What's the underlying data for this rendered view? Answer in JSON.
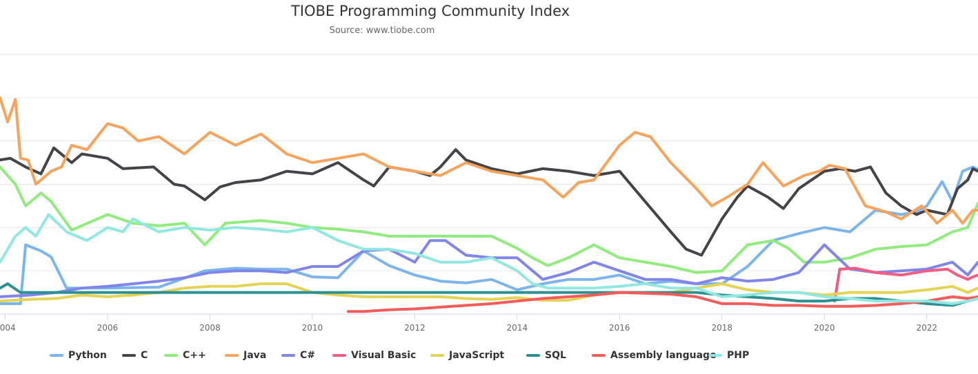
{
  "chart_data": {
    "type": "line",
    "title": "TIOBE Programming Community Index",
    "subtitle": "Source: www.tiobe.com",
    "xlim": [
      2003.9,
      2023.0
    ],
    "ylim": [
      0,
      30
    ],
    "grid": true,
    "legend_position": "bottom",
    "x_ticks": [
      2004,
      2006,
      2008,
      2010,
      2012,
      2014,
      2016,
      2018,
      2020,
      2022
    ],
    "x_tick_labels": [
      "2004",
      "2006",
      "2008",
      "2010",
      "2012",
      "2014",
      "2016",
      "2018",
      "2020",
      "2022"
    ],
    "series": [
      {
        "name": "Python",
        "color": "#7cb5ec",
        "x": [
          2003.9,
          2004.3,
          2004.4,
          2004.7,
          2004.9,
          2005.2,
          2006,
          2007,
          2007.9,
          2008.5,
          2009,
          2009.5,
          2010,
          2010.5,
          2011,
          2011.5,
          2012,
          2012.5,
          2013,
          2013.5,
          2014,
          2014.5,
          2015,
          2015.5,
          2016,
          2016.5,
          2017,
          2017.5,
          2018,
          2018.5,
          2019,
          2019.5,
          2020,
          2020.5,
          2021,
          2021.5,
          2021.8,
          2022,
          2022.3,
          2022.5,
          2022.7,
          2022.9,
          2023.0
        ],
        "y": [
          1.2,
          1.2,
          8.0,
          7.3,
          6.6,
          3.0,
          3.0,
          3.1,
          5.0,
          5.3,
          5.2,
          5.2,
          4.3,
          4.2,
          7.3,
          5.6,
          4.5,
          3.8,
          3.6,
          4.0,
          2.8,
          3.5,
          4.0,
          4.0,
          4.5,
          3.5,
          3.8,
          3.5,
          3.5,
          5.5,
          8.5,
          9.3,
          10.0,
          9.5,
          12.0,
          11.5,
          11.8,
          12.5,
          15.3,
          13.0,
          16.5,
          17.0,
          16.7
        ]
      },
      {
        "name": "C",
        "color": "#434348",
        "x": [
          2003.9,
          2004.1,
          2004.4,
          2004.7,
          2004.95,
          2005.3,
          2005.5,
          2006,
          2006.3,
          2006.9,
          2007.3,
          2007.5,
          2007.9,
          2008.2,
          2008.5,
          2009,
          2009.5,
          2010,
          2010.5,
          2011,
          2011.2,
          2011.5,
          2012,
          2012.3,
          2012.5,
          2012.8,
          2013,
          2013.5,
          2014,
          2014.5,
          2015,
          2015.5,
          2016,
          2016.5,
          2017,
          2017.3,
          2017.6,
          2018,
          2018.3,
          2018.5,
          2018.9,
          2019.2,
          2019.5,
          2020,
          2020.3,
          2020.6,
          2020.9,
          2021.2,
          2021.5,
          2021.8,
          2022,
          2022.4,
          2022.6,
          2022.8,
          2022.9,
          2023.0
        ],
        "y": [
          17.8,
          18.0,
          17.0,
          16.2,
          19.2,
          17.5,
          18.5,
          18.0,
          16.8,
          17.0,
          15.0,
          14.8,
          13.2,
          14.7,
          15.2,
          15.5,
          16.5,
          16.2,
          17.5,
          15.5,
          14.8,
          17.0,
          16.5,
          16.0,
          17.0,
          19.0,
          17.8,
          16.8,
          16.2,
          16.8,
          16.5,
          16.0,
          16.5,
          13.0,
          9.5,
          7.5,
          6.8,
          11.0,
          13.5,
          14.8,
          13.5,
          12.2,
          14.5,
          16.5,
          16.8,
          16.5,
          17.0,
          14.0,
          12.5,
          11.5,
          12.0,
          11.5,
          14.5,
          15.5,
          16.8,
          16.5
        ]
      },
      {
        "name": "C++",
        "color": "#90ed7d",
        "x": [
          2003.9,
          2004.2,
          2004.4,
          2004.7,
          2004.9,
          2005.3,
          2006,
          2006.5,
          2007,
          2007.5,
          2007.9,
          2008.3,
          2009,
          2009.5,
          2010,
          2010.5,
          2011,
          2011.5,
          2012,
          2012.5,
          2013,
          2013.5,
          2014,
          2014.3,
          2014.6,
          2015,
          2015.5,
          2016,
          2016.5,
          2017,
          2017.5,
          2018,
          2018.5,
          2019,
          2019.3,
          2019.6,
          2020,
          2020.5,
          2021,
          2021.5,
          2022,
          2022.5,
          2022.8,
          2023.0
        ],
        "y": [
          17.0,
          15.0,
          12.5,
          14.0,
          13.0,
          9.7,
          11.5,
          10.5,
          10.2,
          10.5,
          8.0,
          10.5,
          10.8,
          10.5,
          10.0,
          9.8,
          9.5,
          9.0,
          9.0,
          9.0,
          9.0,
          9.0,
          7.6,
          6.5,
          5.6,
          6.5,
          8.0,
          6.5,
          6.0,
          5.5,
          4.8,
          5.0,
          8.0,
          8.5,
          7.6,
          6.0,
          6.0,
          6.5,
          7.5,
          7.8,
          8.0,
          9.5,
          10.0,
          12.8
        ]
      },
      {
        "name": "Java",
        "color": "#f7a35c",
        "x": [
          2003.9,
          2004.05,
          2004.2,
          2004.3,
          2004.45,
          2004.6,
          2004.9,
          2005.1,
          2005.3,
          2005.6,
          2006,
          2006.3,
          2006.6,
          2007,
          2007.5,
          2008,
          2008.5,
          2009,
          2009.5,
          2010,
          2010.5,
          2011,
          2011.5,
          2012,
          2012.5,
          2013,
          2013.5,
          2014,
          2014.5,
          2014.9,
          2015.2,
          2015.5,
          2016,
          2016.3,
          2016.6,
          2017,
          2017.5,
          2017.8,
          2018.1,
          2018.5,
          2018.8,
          2019.2,
          2019.6,
          2019.9,
          2020.1,
          2020.4,
          2020.8,
          2021.2,
          2021.5,
          2021.9,
          2022.2,
          2022.5,
          2022.7,
          2022.9,
          2023.0
        ],
        "y": [
          25.0,
          22.2,
          24.8,
          18.0,
          17.8,
          15.0,
          16.5,
          17.0,
          19.5,
          19.0,
          22.0,
          21.5,
          20.0,
          20.5,
          18.5,
          21.0,
          19.5,
          20.8,
          18.5,
          17.5,
          18.0,
          18.5,
          17.0,
          16.5,
          16.0,
          17.5,
          16.5,
          16.0,
          15.5,
          13.5,
          15.2,
          15.5,
          19.5,
          21.0,
          20.5,
          17.5,
          14.5,
          12.5,
          13.5,
          15.0,
          17.5,
          14.8,
          16.0,
          16.5,
          17.2,
          16.8,
          12.5,
          11.8,
          11.0,
          12.5,
          10.5,
          12.0,
          10.5,
          12.0,
          12.0
        ]
      },
      {
        "name": "C#",
        "color": "#8085e9",
        "x": [
          2003.9,
          2004.5,
          2005,
          2005.5,
          2006,
          2006.5,
          2007,
          2007.5,
          2008,
          2008.5,
          2009,
          2009.5,
          2010,
          2010.5,
          2011,
          2011.5,
          2012,
          2012.3,
          2012.6,
          2013,
          2013.5,
          2014,
          2014.5,
          2015,
          2015.5,
          2016,
          2016.5,
          2017,
          2017.5,
          2018,
          2018.5,
          2019,
          2019.5,
          2020,
          2020.5,
          2021,
          2021.5,
          2022,
          2022.5,
          2022.8,
          2023.0
        ],
        "y": [
          2.0,
          2.2,
          2.5,
          3.0,
          3.2,
          3.5,
          3.8,
          4.2,
          4.8,
          5.0,
          5.0,
          4.8,
          5.5,
          5.5,
          7.3,
          7.5,
          6.0,
          8.5,
          8.5,
          6.8,
          6.5,
          6.5,
          4.0,
          4.8,
          6.0,
          5.0,
          4.0,
          4.0,
          3.5,
          4.2,
          3.8,
          4.0,
          4.8,
          8.0,
          5.2,
          4.8,
          5.0,
          5.2,
          6.0,
          4.5,
          6.0
        ]
      },
      {
        "name": "Visual Basic",
        "color": "#f15c80",
        "x": [
          2020.2,
          2020.3,
          2020.6,
          2021,
          2021.5,
          2022,
          2022.4,
          2022.6,
          2022.8,
          2022.9,
          2023.0
        ],
        "y": [
          1.5,
          5.2,
          5.3,
          4.8,
          4.5,
          5.0,
          5.2,
          4.5,
          4.0,
          4.3,
          4.5
        ]
      },
      {
        "name": "JavaScript",
        "color": "#e4d354",
        "x": [
          2003.9,
          2004.5,
          2005,
          2005.5,
          2006,
          2006.5,
          2007,
          2007.5,
          2008,
          2008.5,
          2009,
          2009.5,
          2010,
          2010.5,
          2011,
          2011.5,
          2012,
          2012.5,
          2013,
          2013.5,
          2014,
          2014.5,
          2015,
          2015.5,
          2016,
          2016.5,
          2017,
          2017.5,
          2018,
          2018.5,
          2019,
          2019.5,
          2020,
          2020.5,
          2021,
          2021.5,
          2022,
          2022.5,
          2022.8,
          2023.0
        ],
        "y": [
          1.5,
          1.7,
          1.8,
          2.2,
          2.0,
          2.2,
          2.5,
          3.0,
          3.2,
          3.2,
          3.5,
          3.5,
          2.5,
          2.2,
          2.0,
          2.0,
          2.0,
          2.0,
          1.8,
          1.7,
          1.9,
          1.6,
          1.6,
          2.2,
          2.5,
          2.5,
          2.5,
          3.0,
          3.5,
          2.8,
          2.5,
          2.5,
          2.2,
          2.5,
          2.5,
          2.5,
          2.8,
          3.2,
          2.5,
          3.0
        ]
      },
      {
        "name": "SQL",
        "color": "#2b908f",
        "x": [
          2003.9,
          2004.05,
          2004.3,
          2004.7,
          2005,
          2008,
          2012,
          2016,
          2017,
          2017.5,
          2018,
          2018.5,
          2019,
          2019.5,
          2020,
          2020.5,
          2021,
          2021.5,
          2022,
          2022.5,
          2022.8,
          2023.0
        ],
        "y": [
          3.0,
          3.5,
          2.5,
          2.5,
          2.5,
          2.5,
          2.5,
          2.5,
          2.5,
          2.5,
          2.2,
          2.0,
          1.8,
          1.5,
          1.5,
          1.8,
          1.8,
          1.5,
          1.2,
          1.0,
          1.5,
          1.8
        ]
      },
      {
        "name": "Assembly language",
        "color": "#f45b5b",
        "x": [
          2010.7,
          2011,
          2011.5,
          2012,
          2012.5,
          2013,
          2013.5,
          2014,
          2014.5,
          2015,
          2015.5,
          2016,
          2016.5,
          2017,
          2017.5,
          2018,
          2018.5,
          2019,
          2019.5,
          2020,
          2020.5,
          2021,
          2021.5,
          2022,
          2022.5,
          2022.8,
          2023.0
        ],
        "y": [
          0.3,
          0.3,
          0.5,
          0.6,
          0.8,
          1.0,
          1.2,
          1.5,
          1.8,
          2.0,
          2.2,
          2.5,
          2.4,
          2.3,
          2.0,
          1.2,
          1.2,
          1.0,
          1.0,
          0.9,
          0.9,
          1.0,
          1.2,
          1.5,
          2.0,
          1.8,
          2.0
        ]
      },
      {
        "name": "PHP",
        "color": "#91e8e1",
        "x": [
          2003.9,
          2004.2,
          2004.4,
          2004.6,
          2004.85,
          2005.2,
          2005.6,
          2006,
          2006.3,
          2006.5,
          2007,
          2007.5,
          2008,
          2008.5,
          2009,
          2009.5,
          2010,
          2010.5,
          2011,
          2011.5,
          2012,
          2012.5,
          2013,
          2013.5,
          2014,
          2014.3,
          2014.6,
          2015,
          2015.5,
          2016,
          2016.5,
          2017,
          2017.5,
          2018,
          2018.5,
          2019,
          2019.5,
          2020,
          2020.5,
          2021,
          2021.5,
          2022,
          2022.5,
          2022.8,
          2023.0
        ],
        "y": [
          6.0,
          9.0,
          10.0,
          9.0,
          11.5,
          9.5,
          8.5,
          10.0,
          9.5,
          11.0,
          9.5,
          10.0,
          9.7,
          10.0,
          9.8,
          9.5,
          10.0,
          8.5,
          7.5,
          7.5,
          7.0,
          6.0,
          6.0,
          6.5,
          5.0,
          3.5,
          3.0,
          3.0,
          3.0,
          3.2,
          3.5,
          3.0,
          3.0,
          2.0,
          2.2,
          2.5,
          2.5,
          2.0,
          1.8,
          1.5,
          1.5,
          1.5,
          1.2,
          1.5,
          1.8
        ]
      }
    ]
  },
  "legend": {
    "items": [
      "Python",
      "C",
      "C++",
      "Java",
      "C#",
      "Visual Basic",
      "JavaScript",
      "SQL",
      "Assembly language",
      "PHP"
    ]
  }
}
